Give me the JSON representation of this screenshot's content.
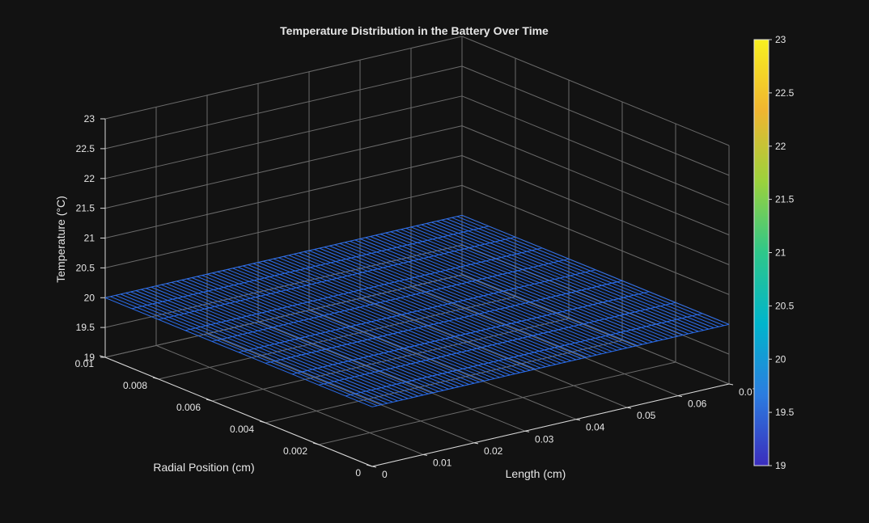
{
  "chart_data": {
    "type": "surface",
    "title": "Temperature Distribution in the Battery Over Time",
    "xlabel": "Length (cm)",
    "ylabel": "Radial Position (cm)",
    "zlabel": "Temperature (°C)",
    "xlim": [
      0,
      0.07
    ],
    "ylim": [
      0,
      0.01
    ],
    "zlim": [
      19,
      23
    ],
    "x_ticks": [
      "0",
      "0.01",
      "0.02",
      "0.03",
      "0.04",
      "0.05",
      "0.06",
      "0.07"
    ],
    "y_ticks": [
      "0",
      "0.002",
      "0.004",
      "0.006",
      "0.008",
      "0.01"
    ],
    "z_ticks": [
      "19",
      "19.5",
      "20",
      "20.5",
      "21",
      "21.5",
      "22",
      "22.5",
      "23"
    ],
    "surface": {
      "x_range": [
        0,
        0.07
      ],
      "y_range": [
        0,
        0.01
      ],
      "z_value": 20,
      "x_points": 71,
      "y_points": 11,
      "line_color": "#2b6ff0"
    },
    "colorbar": {
      "min": 19,
      "max": 23,
      "ticks": [
        "19",
        "19.5",
        "20",
        "20.5",
        "21",
        "21.5",
        "22",
        "22.5",
        "23"
      ],
      "colorscale": [
        "#3b2dbd",
        "#2b7de0",
        "#00b5cc",
        "#2ec78a",
        "#9bd23c",
        "#f0b530",
        "#f8f020"
      ]
    },
    "background": "#121212",
    "grid": true
  }
}
